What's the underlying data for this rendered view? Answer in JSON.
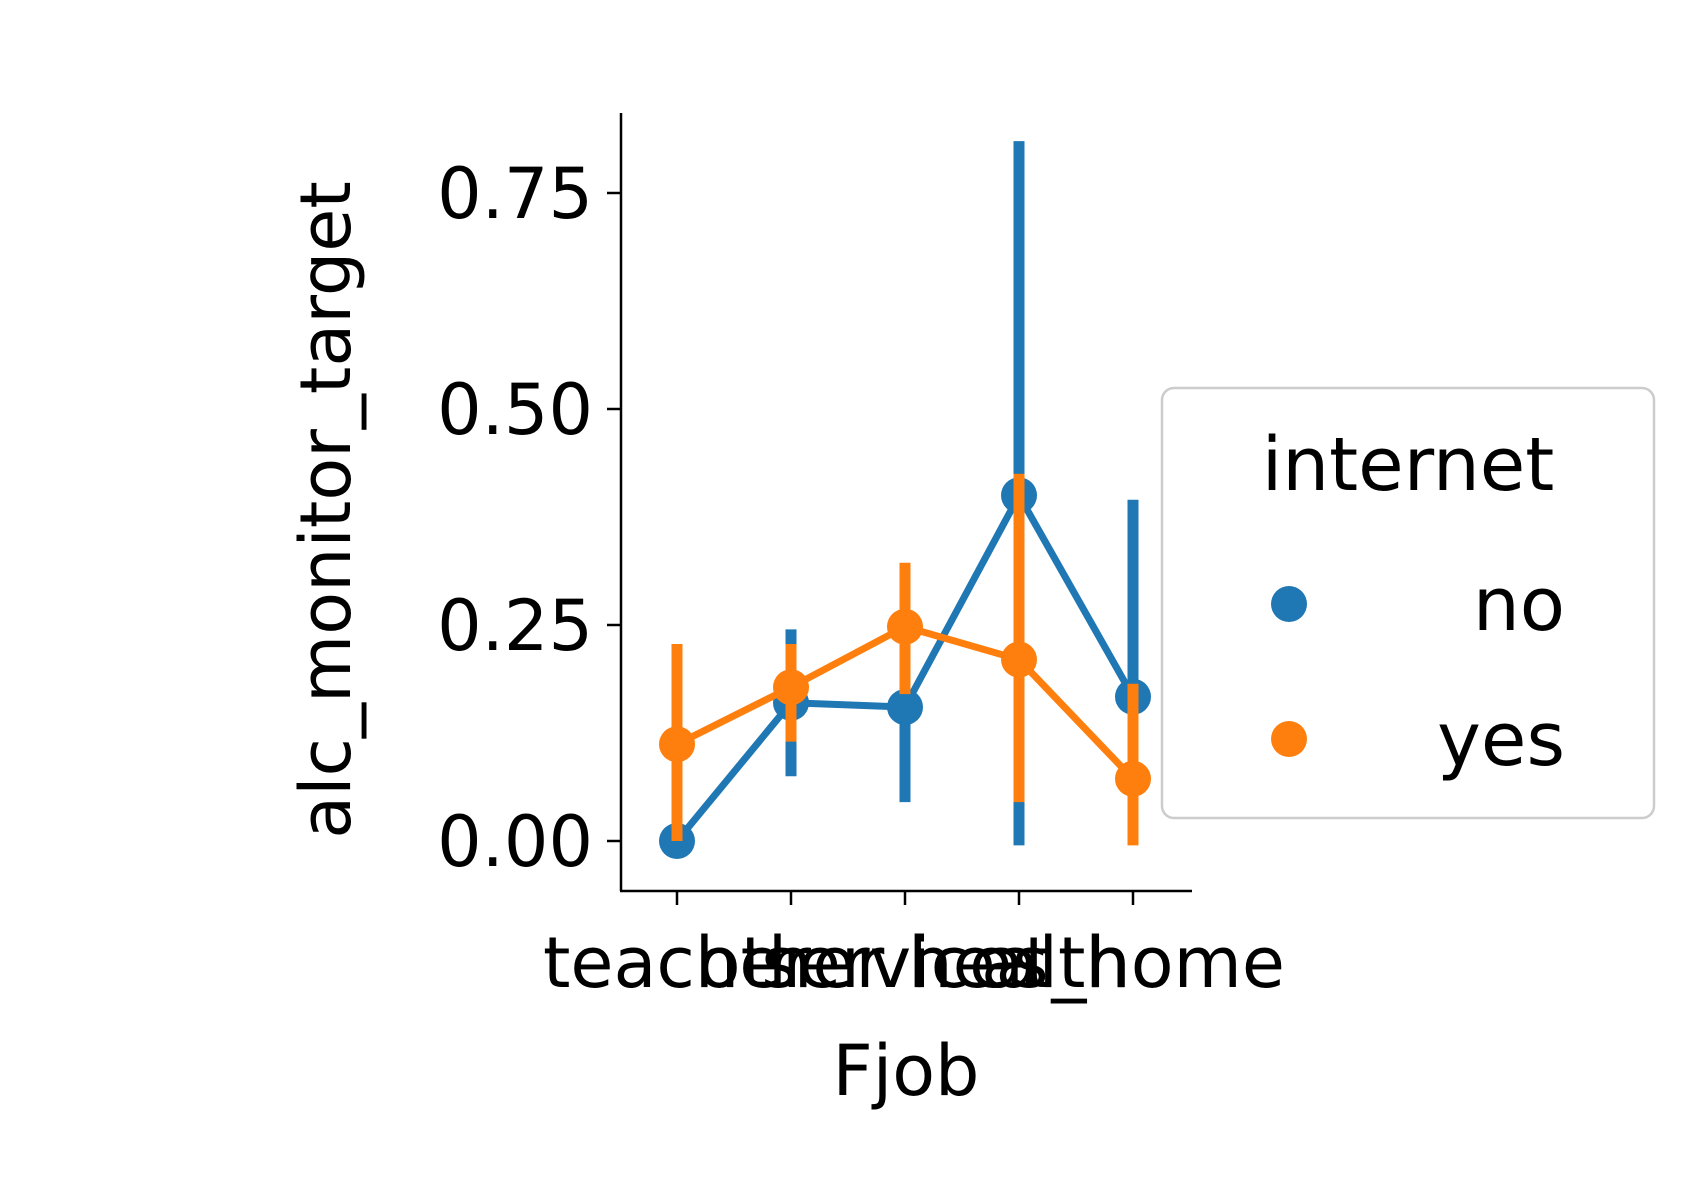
{
  "chart_data": {
    "type": "line",
    "xlabel": "Fjob",
    "ylabel": "alc_monitor_target",
    "categories": [
      "teacher",
      "other",
      "services",
      "health",
      "at_home"
    ],
    "ylim": [
      -0.055,
      0.83
    ],
    "yticks": [
      0.0,
      0.25,
      0.5,
      0.75
    ],
    "ytick_labels": [
      "0.00",
      "0.25",
      "0.50",
      "0.75"
    ],
    "grid": false,
    "legend": {
      "title": "internet",
      "placement": "center-right"
    },
    "series": [
      {
        "name": "no",
        "color": "#1f77b4",
        "values": [
          0.0,
          0.16,
          0.155,
          0.4,
          0.167
        ],
        "ci_low": [
          0.0,
          0.075,
          0.045,
          -0.005,
          0.0
        ],
        "ci_high": [
          0.0,
          0.245,
          0.25,
          0.81,
          0.395
        ]
      },
      {
        "name": "yes",
        "color": "#ff7f0e",
        "values": [
          0.112,
          0.178,
          0.248,
          0.21,
          0.072
        ],
        "ci_low": [
          0.0,
          0.115,
          0.17,
          0.045,
          -0.005
        ],
        "ci_high": [
          0.228,
          0.228,
          0.322,
          0.425,
          0.182
        ]
      }
    ]
  }
}
